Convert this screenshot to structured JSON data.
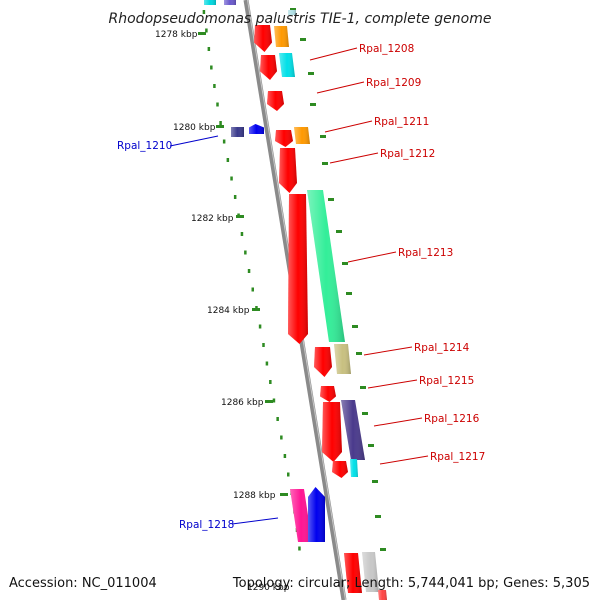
{
  "title": "Rhodopseudomonas palustris TIE-1, complete genome",
  "accession_text": "Accession: NC_011004",
  "topology_text": "Topology: circular; Length: 5,744,041 bp; Genes: 5,305",
  "colors": {
    "backbone": "#8a8a8a",
    "tick": "#2e8b22",
    "forward_label": "#cc0000",
    "reverse_label": "#0000cc"
  },
  "ticks": [
    {
      "label": "1278 kbp"
    },
    {
      "label": "1280 kbp"
    },
    {
      "label": "1282 kbp"
    },
    {
      "label": "1284 kbp"
    },
    {
      "label": "1286 kbp"
    },
    {
      "label": "1288 kbp"
    },
    {
      "label": "1290 kbp"
    }
  ],
  "gene_labels": [
    {
      "name": "Rpal_1208",
      "strand": "forward"
    },
    {
      "name": "Rpal_1209",
      "strand": "forward"
    },
    {
      "name": "Rpal_1210",
      "strand": "reverse"
    },
    {
      "name": "Rpal_1211",
      "strand": "forward"
    },
    {
      "name": "Rpal_1212",
      "strand": "forward"
    },
    {
      "name": "Rpal_1213",
      "strand": "forward"
    },
    {
      "name": "Rpal_1214",
      "strand": "forward"
    },
    {
      "name": "Rpal_1215",
      "strand": "forward"
    },
    {
      "name": "Rpal_1216",
      "strand": "forward"
    },
    {
      "name": "Rpal_1217",
      "strand": "forward"
    },
    {
      "name": "Rpal_1218",
      "strand": "reverse"
    }
  ]
}
